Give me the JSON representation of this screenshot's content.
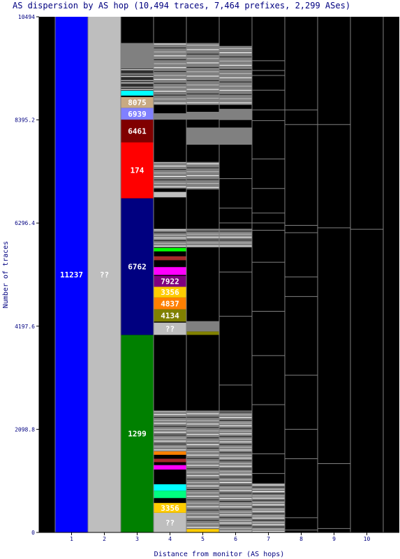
{
  "chart_data": {
    "type": "bar",
    "title": "AS dispersion by AS hop (10,494 traces, 7,464 prefixes, 2,299 ASes)",
    "xlabel": "Distance from monitor (AS hops)",
    "ylabel": "Number of traces",
    "ylim": [
      0,
      10494
    ],
    "yticks": [
      "0",
      "2098.8",
      "4197.6",
      "6296.4",
      "8395.2",
      "10494"
    ],
    "categories": [
      "1",
      "2",
      "3",
      "4",
      "5",
      "6",
      "7",
      "8",
      "9",
      "10"
    ],
    "grid": false,
    "background_color": "#000000",
    "segments": [
      {
        "hop": 1,
        "from": 0,
        "to": 10494,
        "color": "#0000ff",
        "label": "11237"
      },
      {
        "hop": 2,
        "from": 0,
        "to": 10494,
        "color": "#bebebe",
        "label": "??"
      },
      {
        "hop": 3,
        "from": 0,
        "to": 4020,
        "color": "#008000",
        "label": "1299"
      },
      {
        "hop": 3,
        "from": 4020,
        "to": 6800,
        "color": "#000080",
        "label": "6762"
      },
      {
        "hop": 3,
        "from": 6800,
        "to": 7940,
        "color": "#ff0000",
        "label": "174"
      },
      {
        "hop": 3,
        "from": 7940,
        "to": 8400,
        "color": "#800000",
        "label": "6461"
      },
      {
        "hop": 3,
        "from": 8400,
        "to": 8640,
        "color": "#8080ff",
        "label": "6939"
      },
      {
        "hop": 3,
        "from": 8640,
        "to": 8860,
        "color": "#c8aa82",
        "label": "8075"
      },
      {
        "hop": 3,
        "from": 8890,
        "to": 8990,
        "color": "#00ffff",
        "label": ""
      },
      {
        "hop": 3,
        "from": 8990,
        "to": 9440,
        "color": "#3c3c3c",
        "label": ""
      },
      {
        "hop": 3,
        "from": 9440,
        "to": 9960,
        "color": "#808080",
        "label": ""
      },
      {
        "hop": 4,
        "from": 0,
        "to": 400,
        "color": "#bebebe",
        "label": "??"
      },
      {
        "hop": 4,
        "from": 400,
        "to": 600,
        "color": "#ffcc00",
        "label": "3356"
      },
      {
        "hop": 4,
        "from": 700,
        "to": 850,
        "color": "#00ff80",
        "label": ""
      },
      {
        "hop": 4,
        "from": 850,
        "to": 980,
        "color": "#00ffff",
        "label": ""
      },
      {
        "hop": 4,
        "from": 1280,
        "to": 1370,
        "color": "#ff00ff",
        "label": ""
      },
      {
        "hop": 4,
        "from": 1430,
        "to": 1500,
        "color": "#a52a2a",
        "label": ""
      },
      {
        "hop": 4,
        "from": 1580,
        "to": 1650,
        "color": "#ff8000",
        "label": ""
      },
      {
        "hop": 4,
        "from": 1650,
        "to": 2480,
        "color": "#808080",
        "label": ""
      },
      {
        "hop": 4,
        "from": 4020,
        "to": 4270,
        "color": "#bebebe",
        "label": "??"
      },
      {
        "hop": 4,
        "from": 4290,
        "to": 4540,
        "color": "#808000",
        "label": "4134"
      },
      {
        "hop": 4,
        "from": 4540,
        "to": 4780,
        "color": "#ff8000",
        "label": "4837"
      },
      {
        "hop": 4,
        "from": 4780,
        "to": 5000,
        "color": "#ffcc00",
        "label": "3356"
      },
      {
        "hop": 4,
        "from": 5000,
        "to": 5220,
        "color": "#800080",
        "label": "7922"
      },
      {
        "hop": 4,
        "from": 5240,
        "to": 5400,
        "color": "#ff00ff",
        "label": ""
      },
      {
        "hop": 4,
        "from": 5540,
        "to": 5620,
        "color": "#a52a2a",
        "label": ""
      },
      {
        "hop": 4,
        "from": 5720,
        "to": 5790,
        "color": "#00ff00",
        "label": ""
      },
      {
        "hop": 4,
        "from": 5800,
        "to": 6180,
        "color": "#808080",
        "label": ""
      },
      {
        "hop": 4,
        "from": 6820,
        "to": 6930,
        "color": "#bebebe",
        "label": ""
      },
      {
        "hop": 4,
        "from": 7000,
        "to": 7540,
        "color": "#808080",
        "label": ""
      },
      {
        "hop": 4,
        "from": 8400,
        "to": 8530,
        "color": "#808080",
        "label": ""
      },
      {
        "hop": 4,
        "from": 8700,
        "to": 9960,
        "color": "#808080",
        "label": ""
      },
      {
        "hop": 5,
        "from": 0,
        "to": 70,
        "color": "#ffcc00",
        "label": ""
      },
      {
        "hop": 5,
        "from": 70,
        "to": 2480,
        "color": "#808080",
        "label": ""
      },
      {
        "hop": 5,
        "from": 4020,
        "to": 4090,
        "color": "#808000",
        "label": ""
      },
      {
        "hop": 5,
        "from": 4090,
        "to": 4300,
        "color": "#808080",
        "label": ""
      },
      {
        "hop": 5,
        "from": 5800,
        "to": 6180,
        "color": "#808080",
        "label": ""
      },
      {
        "hop": 5,
        "from": 6980,
        "to": 7540,
        "color": "#808080",
        "label": ""
      },
      {
        "hop": 5,
        "from": 7890,
        "to": 8240,
        "color": "#808080",
        "label": ""
      },
      {
        "hop": 5,
        "from": 8400,
        "to": 8560,
        "color": "#808080",
        "label": ""
      },
      {
        "hop": 5,
        "from": 8700,
        "to": 9960,
        "color": "#808080",
        "label": ""
      },
      {
        "hop": 6,
        "from": 0,
        "to": 2480,
        "color": "#808080",
        "label": ""
      },
      {
        "hop": 6,
        "from": 5800,
        "to": 6180,
        "color": "#808080",
        "label": ""
      },
      {
        "hop": 6,
        "from": 7890,
        "to": 8240,
        "color": "#808080",
        "label": ""
      },
      {
        "hop": 6,
        "from": 8400,
        "to": 8620,
        "color": "#808080",
        "label": ""
      },
      {
        "hop": 6,
        "from": 8700,
        "to": 9900,
        "color": "#808080",
        "label": ""
      },
      {
        "hop": 7,
        "from": 0,
        "to": 1000,
        "color": "#808080",
        "label": ""
      }
    ],
    "stripes": [
      {
        "hop": 3,
        "from": 8990,
        "to": 9440,
        "spacing": 45
      },
      {
        "hop": 4,
        "from": 1650,
        "to": 2480,
        "spacing": 60
      },
      {
        "hop": 4,
        "from": 5800,
        "to": 6180,
        "spacing": 55
      },
      {
        "hop": 4,
        "from": 7000,
        "to": 7540,
        "spacing": 70
      },
      {
        "hop": 4,
        "from": 8700,
        "to": 9960,
        "spacing": 80
      },
      {
        "hop": 5,
        "from": 70,
        "to": 2480,
        "spacing": 70
      },
      {
        "hop": 5,
        "from": 5800,
        "to": 6180,
        "spacing": 60
      },
      {
        "hop": 5,
        "from": 6980,
        "to": 7540,
        "spacing": 80
      },
      {
        "hop": 5,
        "from": 8700,
        "to": 9960,
        "spacing": 90
      },
      {
        "hop": 6,
        "from": 0,
        "to": 2480,
        "spacing": 55
      },
      {
        "hop": 6,
        "from": 5800,
        "to": 6180,
        "spacing": 60
      },
      {
        "hop": 6,
        "from": 8700,
        "to": 9900,
        "spacing": 85
      },
      {
        "hop": 7,
        "from": 0,
        "to": 1000,
        "spacing": 45
      }
    ],
    "divider_lines": [
      {
        "hop": 6,
        "at": [
          380,
          1600,
          3000,
          4400,
          5300,
          6300,
          6600,
          7200,
          8400
        ]
      },
      {
        "hop": 7,
        "at": [
          1200,
          1600,
          2600,
          3600,
          4500,
          5500,
          6150,
          6300,
          6500,
          7000,
          7600,
          8380,
          8600,
          9000,
          9300,
          9400,
          9600
        ]
      },
      {
        "hop": 8,
        "at": [
          50,
          300,
          1500,
          2100,
          3200,
          4800,
          5200,
          6100,
          6250,
          8300,
          8600
        ]
      },
      {
        "hop": 9,
        "at": [
          80,
          1400,
          6200,
          8300
        ]
      },
      {
        "hop": 10,
        "at": [
          6170
        ]
      }
    ]
  }
}
